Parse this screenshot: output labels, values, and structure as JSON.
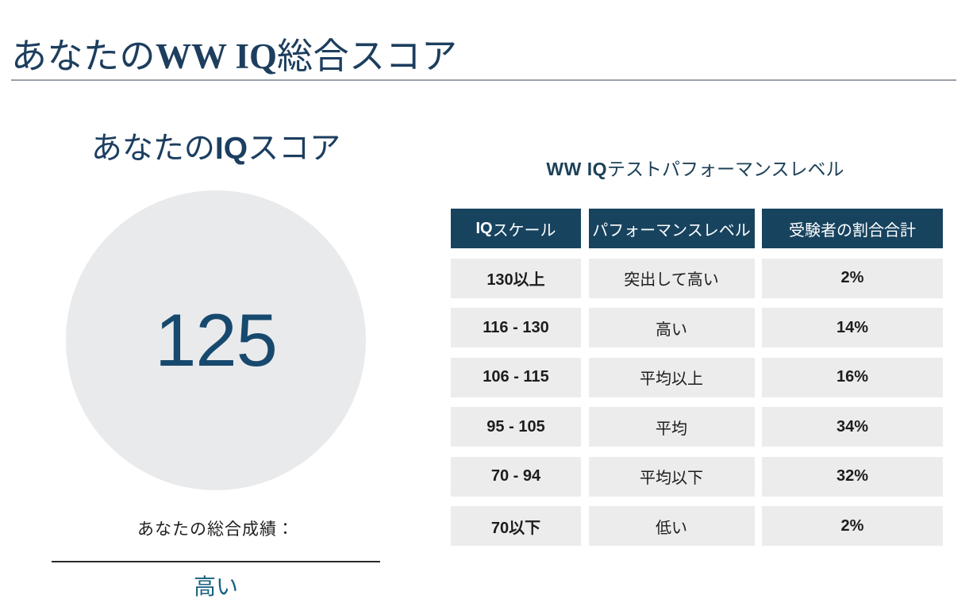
{
  "header": {
    "title": {
      "prefix": "あなたの",
      "brand": "WW IQ",
      "suffix": "総合スコア"
    }
  },
  "score_panel": {
    "heading": {
      "prefix": "あなたの",
      "bold": "IQ",
      "suffix": "スコア"
    },
    "score": "125",
    "result_label": "あなたの総合成績：",
    "result_value": "高い"
  },
  "performance_panel": {
    "heading": {
      "bold": "WW IQ",
      "suffix": "テストパフォーマンスレベル"
    },
    "table": {
      "columns": [
        {
          "bold": "IQ",
          "label": "スケール"
        },
        {
          "bold": "",
          "label": "パフォーマンスレベル"
        },
        {
          "bold": "",
          "label": "受験者の割合合計"
        }
      ],
      "rows": [
        {
          "scale": "130以上",
          "level": "突出して高い",
          "share": "2%"
        },
        {
          "scale": "116 - 130",
          "level": "高い",
          "share": "14%"
        },
        {
          "scale": "106 - 115",
          "level": "平均以上",
          "share": "16%"
        },
        {
          "scale": "95 - 105",
          "level": "平均",
          "share": "34%"
        },
        {
          "scale": "70 - 94",
          "level": "平均以下",
          "share": "32%"
        },
        {
          "scale": "70以下",
          "level": "低い",
          "share": "2%"
        }
      ]
    }
  },
  "colors": {
    "table_header_navy": "#17435f",
    "title_navy": "#1d3e5e",
    "score_navy": "#17496e",
    "circle_gray": "#e9eaec",
    "row_gray": "#ececec",
    "result_blue": "#16607f"
  }
}
